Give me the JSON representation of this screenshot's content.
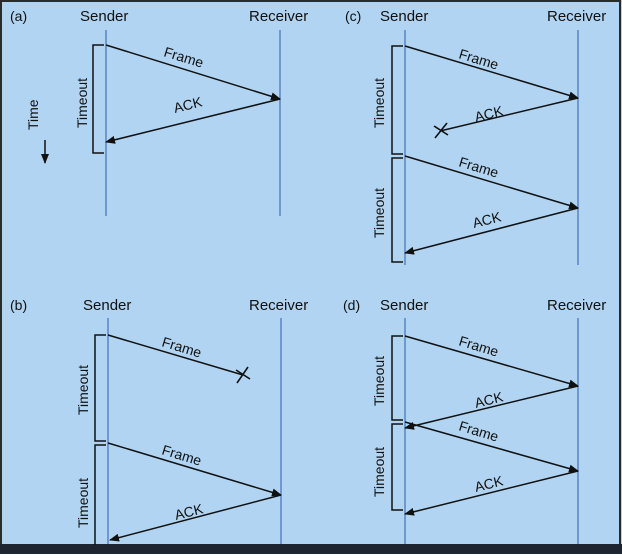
{
  "colors": {
    "background": "#b0d4f1",
    "timeline": "#5b84c4",
    "ink": "#111111",
    "frame_border": "#2a2a2a",
    "bottom_bar": "#1e2430"
  },
  "labels": {
    "sender": "Sender",
    "receiver": "Receiver",
    "receiver_clipped": "Receiver",
    "frame": "Frame",
    "ack": "ACK",
    "timeout": "Timeout",
    "time": "Time"
  },
  "panels": {
    "a": {
      "tag": "(a)"
    },
    "b": {
      "tag": "(b)"
    },
    "c": {
      "tag": "(c)"
    },
    "d": {
      "tag": "(d)"
    }
  }
}
